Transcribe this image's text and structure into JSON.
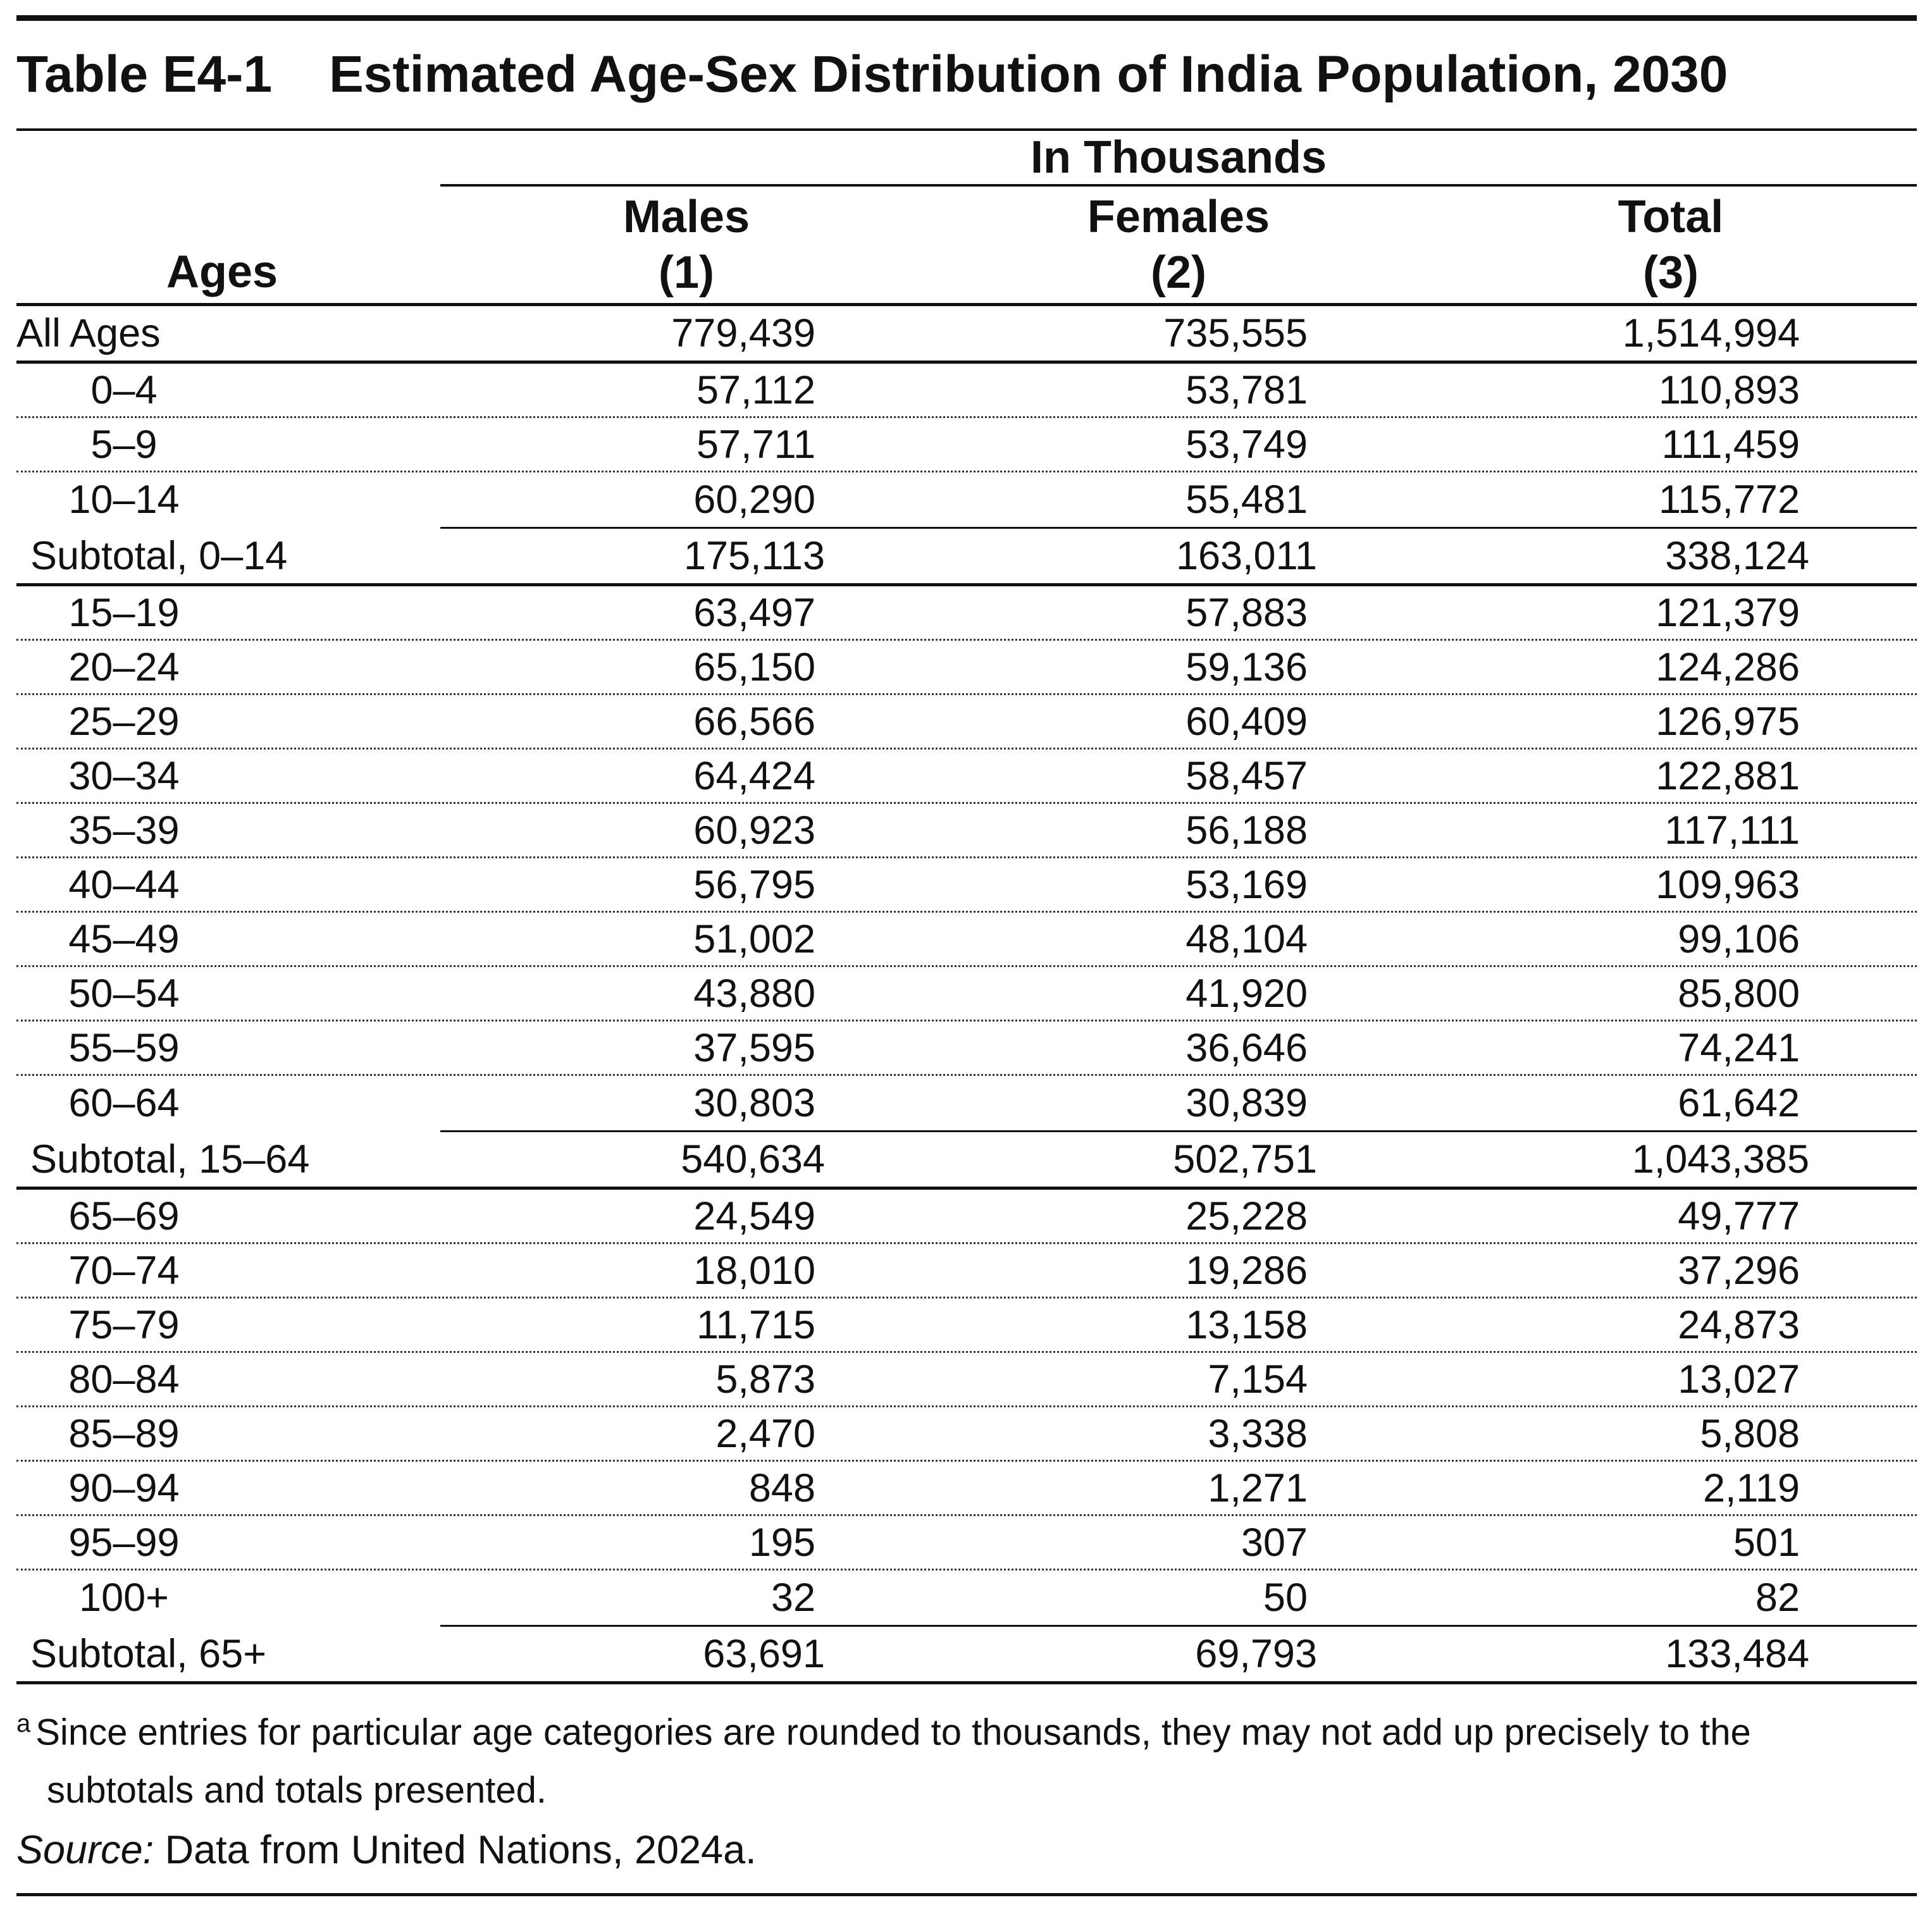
{
  "table": {
    "label": "Table E4-1",
    "title": "Estimated Age-Sex Distribution of India Population, 2030",
    "units": "In Thousands",
    "headers": {
      "ages": "Ages",
      "males": "Males",
      "males_num": "(1)",
      "females": "Females",
      "females_num": "(2)",
      "total": "Total",
      "total_num": "(3)"
    },
    "all_ages": {
      "age": "All Ages",
      "males": "779,439",
      "females": "735,555",
      "total": "1,514,994"
    },
    "young": [
      {
        "age": "0–4",
        "males": "57,112",
        "females": "53,781",
        "total": "110,893"
      },
      {
        "age": "5–9",
        "males": "57,711",
        "females": "53,749",
        "total": "111,459"
      },
      {
        "age": "10–14",
        "males": "60,290",
        "females": "55,481",
        "total": "115,772"
      }
    ],
    "subtotal_young": {
      "age": "Subtotal, 0–14",
      "males": "175,113",
      "females": "163,011",
      "total": "338,124"
    },
    "working": [
      {
        "age": "15–19",
        "males": "63,497",
        "females": "57,883",
        "total": "121,379"
      },
      {
        "age": "20–24",
        "males": "65,150",
        "females": "59,136",
        "total": "124,286"
      },
      {
        "age": "25–29",
        "males": "66,566",
        "females": "60,409",
        "total": "126,975"
      },
      {
        "age": "30–34",
        "males": "64,424",
        "females": "58,457",
        "total": "122,881"
      },
      {
        "age": "35–39",
        "males": "60,923",
        "females": "56,188",
        "total": "117,111"
      },
      {
        "age": "40–44",
        "males": "56,795",
        "females": "53,169",
        "total": "109,963"
      },
      {
        "age": "45–49",
        "males": "51,002",
        "females": "48,104",
        "total": "99,106"
      },
      {
        "age": "50–54",
        "males": "43,880",
        "females": "41,920",
        "total": "85,800"
      },
      {
        "age": "55–59",
        "males": "37,595",
        "females": "36,646",
        "total": "74,241"
      },
      {
        "age": "60–64",
        "males": "30,803",
        "females": "30,839",
        "total": "61,642"
      }
    ],
    "subtotal_working": {
      "age": "Subtotal, 15–64",
      "males": "540,634",
      "females": "502,751",
      "total": "1,043,385"
    },
    "old": [
      {
        "age": "65–69",
        "males": "24,549",
        "females": "25,228",
        "total": "49,777"
      },
      {
        "age": "70–74",
        "males": "18,010",
        "females": "19,286",
        "total": "37,296"
      },
      {
        "age": "75–79",
        "males": "11,715",
        "females": "13,158",
        "total": "24,873"
      },
      {
        "age": "80–84",
        "males": "5,873",
        "females": "7,154",
        "total": "13,027"
      },
      {
        "age": "85–89",
        "males": "2,470",
        "females": "3,338",
        "total": "5,808"
      },
      {
        "age": "90–94",
        "males": "848",
        "females": "1,271",
        "total": "2,119"
      },
      {
        "age": "95–99",
        "males": "195",
        "females": "307",
        "total": "501"
      },
      {
        "age": "100+",
        "males": "32",
        "females": "50",
        "total": "82"
      }
    ],
    "subtotal_old": {
      "age": "Subtotal, 65+",
      "males": "63,691",
      "females": "69,793",
      "total": "133,484"
    },
    "footnote_mark": "a",
    "footnote_line1": "Since entries for particular age categories are rounded to thousands, they may not add up precisely to the",
    "footnote_line2": "subtotals and totals presented.",
    "source_label": "Source:",
    "source_text": " Data from United Nations, 2024a."
  }
}
